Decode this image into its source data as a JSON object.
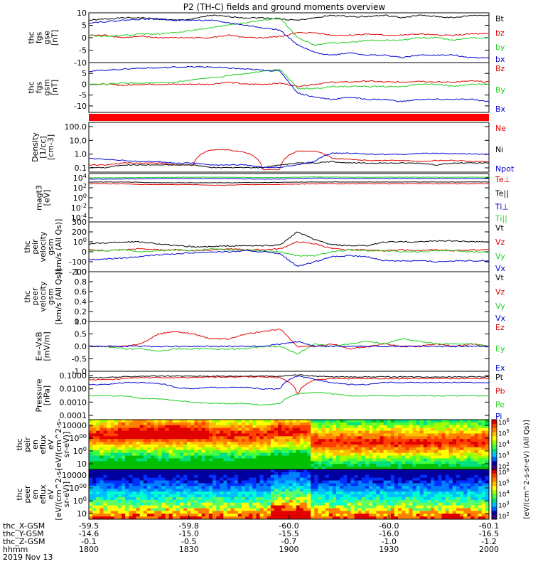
{
  "title": "P2 (TH-C) fields and ground moments overview",
  "colors": {
    "black": "#000000",
    "red": "#e00000",
    "green": "#1fd01f",
    "blue": "#0000d0",
    "band": "#ff0000"
  },
  "chart_data": [
    {
      "id": "fgs_gse",
      "type": "line",
      "ylabel": [
        "thc",
        "fgs",
        "gse",
        "[nT]"
      ],
      "ylim": [
        -10,
        10
      ],
      "yticks": [
        "-10",
        "-5",
        "0",
        "5",
        "10"
      ],
      "series": [
        {
          "name": "Bt",
          "color": "black",
          "values": [
            7,
            7.5,
            8,
            8,
            7.5,
            7,
            7.5,
            9,
            8.5,
            8,
            8,
            7.5,
            7,
            8,
            9,
            8.5,
            8.5,
            9,
            8,
            9,
            8.5,
            8,
            9,
            9
          ]
        },
        {
          "name": "bz",
          "color": "red",
          "values": [
            1,
            1,
            0,
            0.5,
            0,
            0,
            0,
            0,
            1,
            0,
            0,
            0.5,
            2,
            2,
            1,
            1,
            1.5,
            1,
            1,
            1.5,
            1,
            1,
            1.5,
            1.5
          ]
        },
        {
          "name": "by",
          "color": "green",
          "values": [
            1,
            0.5,
            1,
            1.5,
            1.5,
            2,
            3,
            4,
            5,
            6,
            7,
            8,
            0,
            -3,
            -2,
            -2,
            -1,
            -1,
            -1,
            0,
            0,
            -1,
            0,
            0
          ]
        },
        {
          "name": "bx",
          "color": "blue",
          "values": [
            6,
            6.5,
            7,
            7.5,
            7.5,
            7,
            7,
            7,
            6,
            5,
            4,
            3,
            -3,
            -6,
            -7,
            -6,
            -7,
            -7,
            -8,
            -7,
            -7,
            -7,
            -8,
            -8
          ]
        }
      ]
    },
    {
      "id": "fgs_gsm",
      "type": "line",
      "ylabel": [
        "thc",
        "fgs",
        "gsm",
        "[nT]"
      ],
      "ylim": [
        -13,
        10
      ],
      "yticks": [
        "-10",
        "-5",
        "0",
        "5"
      ],
      "series": [
        {
          "name": "Bz",
          "color": "red",
          "values": [
            0,
            0,
            -0.5,
            0,
            0,
            0,
            0,
            0,
            1,
            0,
            0,
            0.5,
            -1,
            0,
            1,
            1,
            1.5,
            1,
            1,
            1.5,
            1,
            1,
            1.5,
            1
          ]
        },
        {
          "name": "By",
          "color": "green",
          "values": [
            0,
            0,
            0.5,
            0.5,
            0.5,
            1,
            2,
            3,
            4,
            5,
            6,
            7,
            -2,
            -2,
            -1,
            -1,
            -1,
            -1,
            -1,
            0,
            0,
            -1,
            0,
            0
          ]
        },
        {
          "name": "Bx",
          "color": "blue",
          "values": [
            6,
            6.5,
            7,
            7.5,
            7.5,
            8,
            8,
            8,
            7.5,
            7,
            6.5,
            6,
            -4,
            -6,
            -7,
            -6,
            -7,
            -7,
            -8,
            -7,
            -7,
            -7,
            -7,
            -8
          ]
        }
      ]
    },
    {
      "id": "band",
      "type": "band"
    },
    {
      "id": "density",
      "type": "line",
      "log": true,
      "ylabel": [
        "Density",
        "[1/cc]",
        "[cm-3]"
      ],
      "ylim": [
        0.1,
        200
      ],
      "yticks": [
        "0.1",
        "1.0",
        "10.0",
        "100.0"
      ],
      "series": [
        {
          "name": "Ne",
          "color": "red",
          "values": [
            0.3,
            0.3,
            0.4,
            0.4,
            0.4,
            0.3,
            0.3,
            3,
            3,
            2,
            0.15,
            0.15,
            2.5,
            2.5,
            0.8,
            0.7,
            0.6,
            0.6,
            0.6,
            0.5,
            0.6,
            0.6,
            0.5,
            0.5
          ]
        },
        {
          "name": "Ni",
          "color": "black",
          "values": [
            0.2,
            0.2,
            0.3,
            0.3,
            0.3,
            0.3,
            0.3,
            0.2,
            0.2,
            0.2,
            0.2,
            0.3,
            0.4,
            0.4,
            0.5,
            0.4,
            0.4,
            0.4,
            0.4,
            0.4,
            0.3,
            0.4,
            0.4,
            0.4
          ]
        },
        {
          "name": "Npot",
          "color": "blue",
          "values": [
            0.8,
            0.7,
            0.6,
            0.5,
            0.5,
            0.4,
            0.4,
            0.3,
            0.3,
            0.3,
            0.2,
            0.2,
            0.3,
            0.5,
            1.8,
            1.8,
            1.6,
            1.5,
            1.5,
            1.7,
            1.8,
            1.7,
            1.6,
            1.5
          ]
        }
      ]
    },
    {
      "id": "temp",
      "type": "line",
      "log": true,
      "ylabel": [
        "magt3",
        "[eV]"
      ],
      "ylim": [
        0.0001,
        10000
      ],
      "yticks": [
        "10-4",
        "10-2",
        "100",
        "102",
        "104"
      ],
      "series": [
        {
          "name": "Te⊥",
          "color": "red",
          "values": [
            200,
            200,
            200,
            150,
            150,
            150,
            150,
            120,
            120,
            150,
            150,
            160,
            180,
            200,
            200,
            200,
            200,
            200,
            200,
            200,
            200,
            200,
            200,
            200
          ]
        },
        {
          "name": "Te||",
          "color": "black",
          "values": [
            400,
            400,
            400,
            350,
            300,
            300,
            300,
            300,
            300,
            320,
            320,
            350,
            380,
            400,
            400,
            400,
            400,
            400,
            400,
            400,
            400,
            400,
            400,
            400
          ]
        },
        {
          "name": "Ti⊥",
          "color": "blue",
          "values": [
            1200,
            1200,
            1300,
            1300,
            1400,
            1500,
            1500,
            1500,
            1400,
            1300,
            1200,
            1200,
            1500,
            1800,
            1600,
            1500,
            1500,
            1500,
            1500,
            1500,
            1500,
            1500,
            1500,
            1500
          ]
        },
        {
          "name": "Ti||",
          "color": "green",
          "values": [
            2000,
            2000,
            2100,
            2200,
            2300,
            2400,
            2500,
            2500,
            2400,
            2300,
            2200,
            2200,
            2500,
            2800,
            2600,
            2500,
            2500,
            2500,
            2500,
            2500,
            2500,
            2500,
            2500,
            2500
          ]
        }
      ]
    },
    {
      "id": "peir_vel",
      "type": "line",
      "ylabel": [
        "thc",
        "peir",
        "velocity",
        "gsm",
        "[km/s (All Qs)]"
      ],
      "ylim": [
        -200,
        300
      ],
      "yticks": [
        "-200",
        "-100",
        "0",
        "100",
        "200",
        "300"
      ],
      "series": [
        {
          "name": "Vt",
          "color": "black",
          "values": [
            80,
            90,
            100,
            100,
            80,
            60,
            50,
            50,
            60,
            60,
            60,
            70,
            200,
            120,
            70,
            60,
            60,
            100,
            100,
            100,
            110,
            110,
            100,
            100
          ]
        },
        {
          "name": "Vz",
          "color": "red",
          "values": [
            20,
            10,
            20,
            30,
            20,
            20,
            10,
            20,
            30,
            20,
            20,
            30,
            100,
            80,
            30,
            20,
            20,
            10,
            20,
            10,
            20,
            10,
            20,
            20
          ]
        },
        {
          "name": "Vy",
          "color": "green",
          "values": [
            10,
            10,
            20,
            0,
            10,
            20,
            10,
            30,
            20,
            20,
            10,
            0,
            -40,
            -40,
            0,
            20,
            10,
            10,
            0,
            0,
            10,
            10,
            0,
            0
          ]
        },
        {
          "name": "Vx",
          "color": "blue",
          "values": [
            -80,
            -70,
            -60,
            -50,
            -30,
            -20,
            -10,
            0,
            0,
            10,
            0,
            -20,
            -150,
            -100,
            -50,
            -40,
            -50,
            -90,
            -90,
            -90,
            -100,
            -90,
            -90,
            -90
          ]
        }
      ]
    },
    {
      "id": "peer_vel",
      "type": "line",
      "ylabel": [
        "thc",
        "peer",
        "velocity",
        "gsm",
        "[km/s (All Qs)]"
      ],
      "ylim": [
        0,
        1
      ],
      "yticks": [
        "0.0",
        "0.2",
        "0.4",
        "0.6",
        "0.8",
        "1.0"
      ],
      "series": [
        {
          "name": "Vt",
          "color": "black",
          "values": []
        },
        {
          "name": "Vz",
          "color": "red",
          "values": []
        },
        {
          "name": "Vy",
          "color": "green",
          "values": []
        },
        {
          "name": "Vx",
          "color": "blue",
          "values": []
        }
      ]
    },
    {
      "id": "efield",
      "type": "line",
      "ylabel": [
        "E=-VxB",
        "[mV/m]"
      ],
      "ylim": [
        -1,
        1
      ],
      "yticks": [
        "-1.0",
        "-0.5",
        "0.0",
        "0.5",
        "1.0"
      ],
      "series": [
        {
          "name": "Ez",
          "color": "red",
          "values": [
            0,
            0,
            0,
            0.1,
            0.5,
            0.6,
            0.5,
            0.3,
            0.3,
            0.5,
            0.6,
            0.7,
            0,
            0,
            0.1,
            -0.1,
            0,
            0.1,
            0,
            0,
            0.1,
            0,
            0.1,
            0
          ]
        },
        {
          "name": "Ey",
          "color": "green",
          "values": [
            0,
            0,
            -0.1,
            -0.1,
            -0.2,
            -0.1,
            -0.1,
            -0.1,
            -0.1,
            -0.1,
            0,
            0,
            -0.3,
            0.1,
            0,
            0.1,
            0.2,
            0.1,
            0.3,
            0.2,
            0.1,
            0.1,
            0.1,
            0
          ]
        },
        {
          "name": "Ex",
          "color": "blue",
          "values": [
            0,
            0,
            0,
            0,
            0,
            0,
            0,
            0,
            0,
            0,
            0,
            0.1,
            0.2,
            0,
            0,
            0,
            0,
            0,
            0,
            0,
            0,
            0,
            0,
            0
          ]
        }
      ]
    },
    {
      "id": "pressure",
      "type": "line",
      "log": true,
      "ylabel": [
        "Pressure",
        "[nPa]"
      ],
      "ylim": [
        0.0001,
        0.1
      ],
      "yticks": [
        "0.0001",
        "0.0010",
        "0.0100",
        "0.1000"
      ],
      "series": [
        {
          "name": "Pt",
          "color": "black",
          "values": [
            0.04,
            0.04,
            0.045,
            0.05,
            0.05,
            0.05,
            0.05,
            0.05,
            0.05,
            0.05,
            0.05,
            0.05,
            0.06,
            0.05,
            0.045,
            0.045,
            0.045,
            0.045,
            0.045,
            0.045,
            0.045,
            0.045,
            0.045,
            0.045
          ]
        },
        {
          "name": "Pb",
          "color": "red",
          "values": [
            0.03,
            0.03,
            0.035,
            0.04,
            0.04,
            0.04,
            0.04,
            0.045,
            0.045,
            0.045,
            0.045,
            0.04,
            0.003,
            0.03,
            0.035,
            0.035,
            0.035,
            0.035,
            0.035,
            0.035,
            0.035,
            0.035,
            0.035,
            0.035
          ]
        },
        {
          "name": "Pe",
          "color": "green",
          "values": [
            0.003,
            0.003,
            0.003,
            0.002,
            0.002,
            0.0015,
            0.0012,
            0.001,
            0.001,
            0.001,
            0.0008,
            0.001,
            0.004,
            0.005,
            0.004,
            0.003,
            0.003,
            0.003,
            0.003,
            0.003,
            0.003,
            0.003,
            0.003,
            0.003
          ]
        },
        {
          "name": "Pi",
          "color": "blue",
          "values": [
            0.015,
            0.015,
            0.02,
            0.02,
            0.018,
            0.01,
            0.008,
            0.01,
            0.01,
            0.01,
            0.008,
            0.008,
            0.05,
            0.03,
            0.02,
            0.015,
            0.015,
            0.02,
            0.02,
            0.02,
            0.02,
            0.02,
            0.02,
            0.02
          ]
        }
      ]
    },
    {
      "id": "peir_eflux",
      "type": "heatmap",
      "ylabel": [
        "thc",
        "peir",
        "en",
        "eflux",
        "eV",
        "[eV/(cm^2-s-",
        "sr-eV)]"
      ],
      "yticks": [
        "10",
        "100",
        "1000",
        "10000"
      ],
      "peak": "ions"
    },
    {
      "id": "peer_eflux",
      "type": "heatmap",
      "ylabel": [
        "thc",
        "peer",
        "en",
        "eflux",
        "eV",
        "[eV/(cm^2-s-",
        "sr-eV)]"
      ],
      "yticks": [
        "10",
        "100",
        "1000",
        "10000"
      ],
      "peak": "electrons"
    }
  ],
  "colorbar": {
    "label": "[eV/(cm^2-s-sr-eV) (All Qs)]",
    "ticks1": [
      "10^2",
      "10^3",
      "10^4",
      "10^5",
      "10^6"
    ],
    "ticks2": [
      "10^2",
      "10^3",
      "10^4",
      "10^5",
      "10^6"
    ]
  },
  "xaxis": {
    "row_labels": [
      "thc_X-GSM",
      "thc_Y-GSM",
      "thc_Z-GSM",
      "hhmm",
      "2019 Nov 13"
    ],
    "columns": [
      {
        "vals": [
          "-59.5",
          "-14.6",
          "-0.1",
          "1800"
        ]
      },
      {
        "vals": [
          "-59.8",
          "-15.0",
          "-0.5",
          "1830"
        ]
      },
      {
        "vals": [
          "-60.0",
          "-15.5",
          "-0.7",
          "1900"
        ]
      },
      {
        "vals": [
          "-60.0",
          "-16.0",
          "-1.0",
          "1930"
        ]
      },
      {
        "vals": [
          "-60.1",
          "-16.5",
          "-1.2",
          "2000"
        ]
      }
    ]
  }
}
